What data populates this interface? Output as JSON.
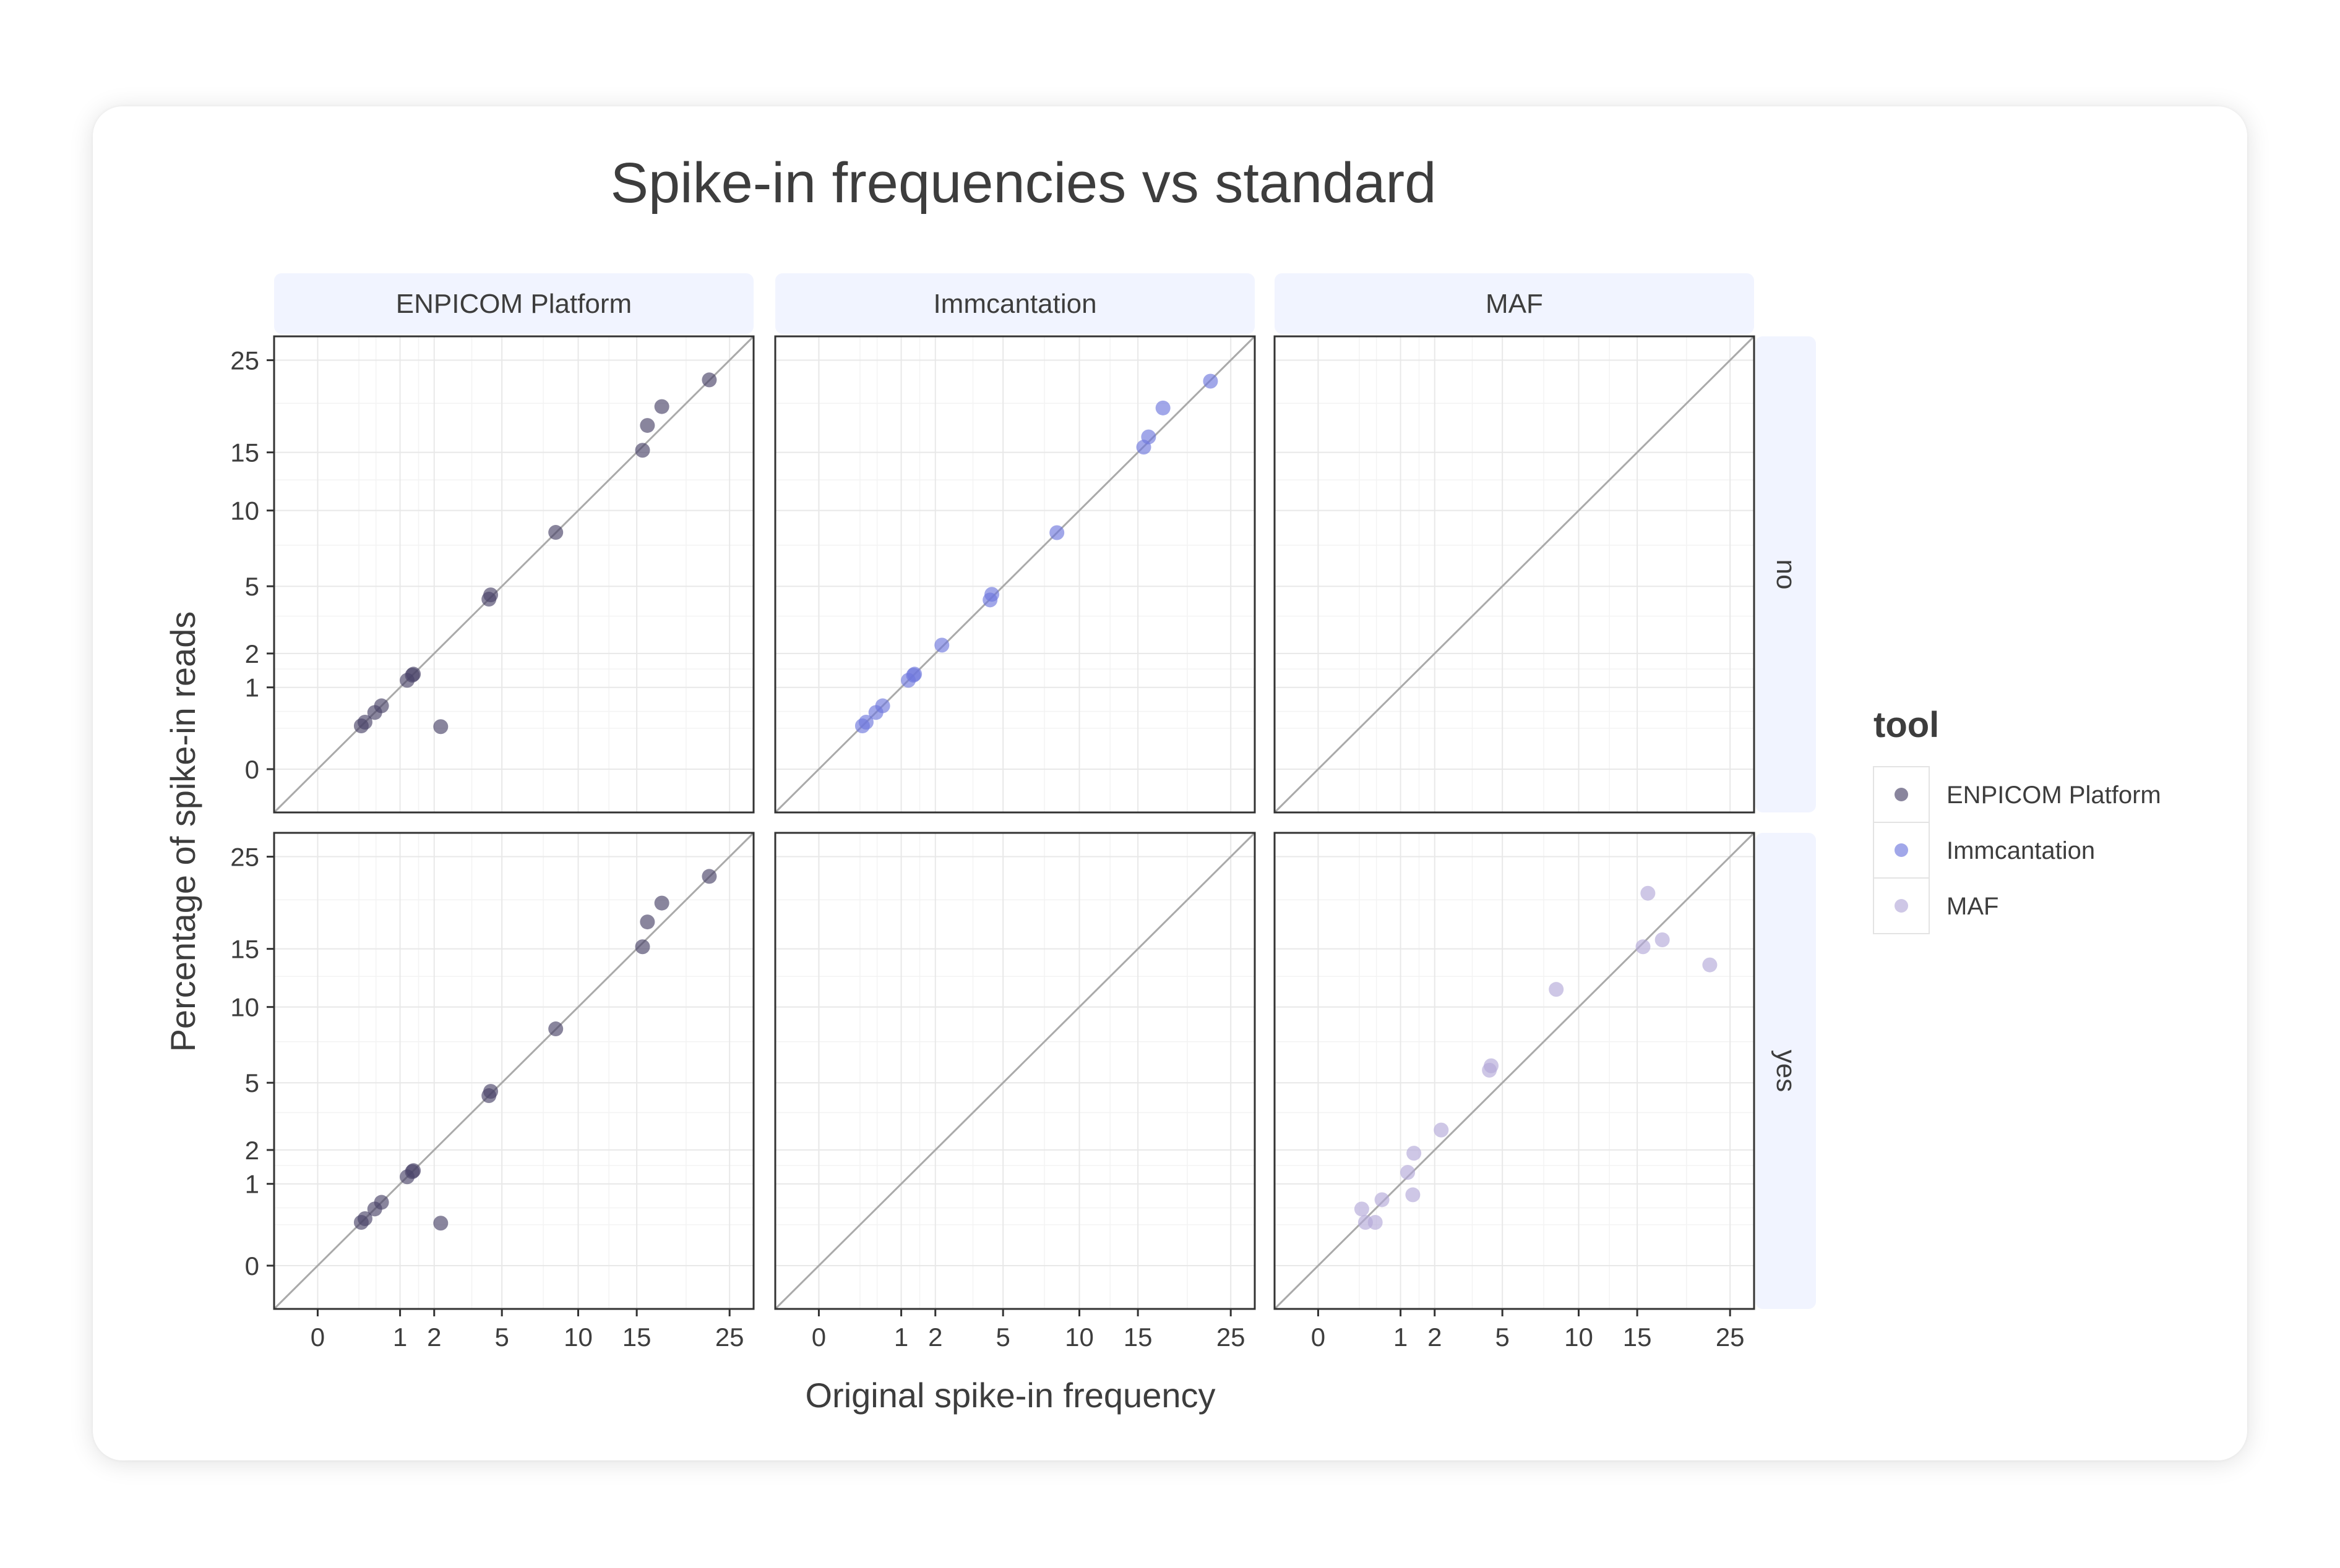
{
  "chart_data": {
    "type": "scatter",
    "title": "Spike-in frequencies vs standard",
    "xlabel": "Original spike-in frequency",
    "ylabel": "Percentage of spike-in reads",
    "x_ticks": [
      0,
      1,
      2,
      5,
      10,
      15,
      25
    ],
    "y_ticks": [
      0,
      1,
      2,
      5,
      10,
      15,
      25
    ],
    "xlim": [
      -0.28,
      28
    ],
    "ylim": [
      -0.28,
      28
    ],
    "x_scale": "sqrt",
    "y_scale": "sqrt",
    "grid": true,
    "reference_line": "y = x",
    "col_facets": [
      "ENPICOM Platform",
      "Immcantation",
      "MAF"
    ],
    "row_facets": [
      "no",
      "yes"
    ],
    "legend": {
      "title": "tool",
      "position": "right",
      "entries": [
        "ENPICOM Platform",
        "Immcantation",
        "MAF"
      ]
    },
    "series": [
      {
        "name": "ENPICOM Platform",
        "color": "#4a4468",
        "panels": [
          {
            "row": "no",
            "x": [
              0.28,
              0.33,
              0.48,
              0.6,
              1.18,
              1.32,
              1.35,
              2.23,
              4.32,
              4.41,
              8.35,
              15.55,
              16.02,
              17.45,
              22.6
            ],
            "y": [
              0.28,
              0.33,
              0.48,
              0.6,
              1.18,
              1.32,
              1.35,
              0.27,
              4.32,
              4.54,
              8.38,
              15.2,
              17.66,
              19.65,
              22.65
            ]
          },
          {
            "row": "yes",
            "x": [
              0.28,
              0.33,
              0.48,
              0.6,
              1.18,
              1.32,
              1.35,
              2.23,
              4.32,
              4.41,
              8.35,
              15.55,
              16.02,
              17.45,
              22.6
            ],
            "y": [
              0.28,
              0.33,
              0.48,
              0.6,
              1.18,
              1.32,
              1.35,
              0.27,
              4.32,
              4.54,
              8.38,
              15.2,
              17.66,
              19.65,
              22.65
            ]
          }
        ]
      },
      {
        "name": "Immcantation",
        "color": "#6f78dd",
        "panels": [
          {
            "row": "no",
            "x": [
              0.28,
              0.33,
              0.48,
              0.6,
              1.18,
              1.32,
              1.35,
              2.23,
              4.32,
              4.41,
              8.35,
              15.55,
              16.02,
              17.45,
              22.6
            ],
            "y": [
              0.28,
              0.33,
              0.48,
              0.6,
              1.18,
              1.32,
              1.35,
              2.3,
              4.28,
              4.57,
              8.36,
              15.5,
              16.5,
              19.5,
              22.5
            ]
          }
        ]
      },
      {
        "name": "MAF",
        "color": "#b4a9d8",
        "panels": [
          {
            "row": "yes",
            "x": [
              0.28,
              0.33,
              0.48,
              0.6,
              1.18,
              1.32,
              1.35,
              2.23,
              4.32,
              4.41,
              8.35,
              15.55,
              16.02,
              17.45,
              22.6
            ],
            "y": [
              0.48,
              0.28,
              0.28,
              0.65,
              1.3,
              0.75,
              1.89,
              2.75,
              5.71,
              5.97,
              11.41,
              15.2,
              20.73,
              15.87,
              13.52
            ]
          }
        ]
      }
    ]
  }
}
